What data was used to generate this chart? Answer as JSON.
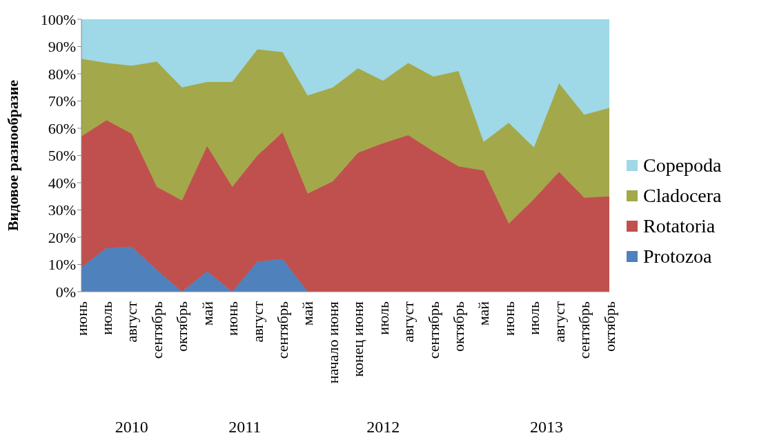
{
  "chart_data": {
    "type": "area",
    "stacked": true,
    "ylabel": "Видовое разнообразие",
    "categories": [
      "июнь",
      "июль",
      "август",
      "сентябрь",
      "октябрь",
      "май",
      "июнь",
      "август",
      "сентябрь",
      "май",
      "начало июня",
      "конец июня",
      "июль",
      "август",
      "сентябрь",
      "октябрь",
      "май",
      "июнь",
      "июль",
      "август",
      "сентябрь",
      "октябрь"
    ],
    "series": [
      {
        "name": "Protozoa",
        "color": "#4f81bd",
        "values": [
          9,
          16,
          16.5,
          8,
          0,
          7.5,
          0,
          11,
          12,
          0,
          0,
          0,
          0,
          0,
          0,
          0,
          0,
          0,
          0,
          0,
          0,
          0
        ]
      },
      {
        "name": "Rotatoria",
        "color": "#c0504d",
        "values": [
          48,
          47,
          41.5,
          30.5,
          33.5,
          46,
          38.5,
          39,
          46.5,
          36,
          40.5,
          51,
          54.5,
          57.5,
          51.5,
          46,
          44.5,
          25,
          34,
          44,
          34.5,
          35
        ]
      },
      {
        "name": "Cladocera",
        "color": "#a3a84a",
        "values": [
          28.5,
          21,
          25,
          46,
          41.5,
          23.5,
          38.5,
          39,
          29.5,
          36,
          34.5,
          31,
          23,
          26.5,
          27.5,
          35,
          10.5,
          37,
          19,
          32.5,
          30.5,
          32.5
        ]
      },
      {
        "name": "Copepoda",
        "color": "#9fd8e6",
        "values": [
          14.5,
          16,
          17,
          15.5,
          25,
          23,
          23,
          11,
          12,
          28,
          25,
          18,
          22.5,
          16,
          21,
          19,
          45,
          38,
          47,
          23.5,
          35,
          32.5
        ]
      }
    ],
    "ylim": [
      0,
      100
    ],
    "yticks": [
      {
        "value": 0,
        "label": "0%"
      },
      {
        "value": 10,
        "label": "10%"
      },
      {
        "value": 20,
        "label": "20%"
      },
      {
        "value": 30,
        "label": "30%"
      },
      {
        "value": 40,
        "label": "40%"
      },
      {
        "value": 50,
        "label": "50%"
      },
      {
        "value": 60,
        "label": "60%"
      },
      {
        "value": 70,
        "label": "70%"
      },
      {
        "value": 80,
        "label": "80%"
      },
      {
        "value": 90,
        "label": "90%"
      },
      {
        "value": 100,
        "label": "100%"
      }
    ],
    "legend": "right",
    "annotations": [
      "2010",
      "2011",
      "2012",
      "2013"
    ]
  }
}
